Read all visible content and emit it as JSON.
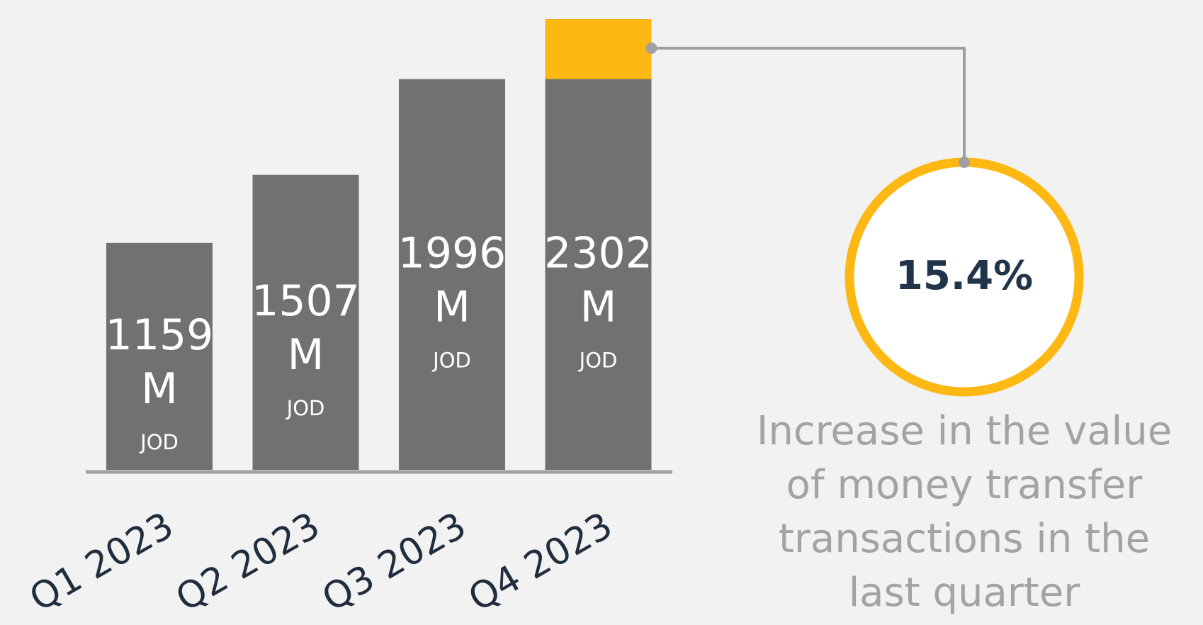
{
  "chart_data": {
    "type": "bar",
    "categories": [
      "Q1 2023",
      "Q2 2023",
      "Q3 2023",
      "Q4 2023"
    ],
    "values": [
      1159,
      1507,
      1996,
      2302
    ],
    "value_labels": [
      "1159 M JOD",
      "1507 M JOD",
      "1996 M JOD",
      "2302 M JOD"
    ],
    "color": "#707170",
    "highlight_color": "#fdb813",
    "ylim": [
      0,
      2400
    ],
    "callout": "15.4%",
    "annotation": [
      "Increase in the value",
      "of money transfer",
      "transactions in the",
      "last quarter"
    ]
  }
}
